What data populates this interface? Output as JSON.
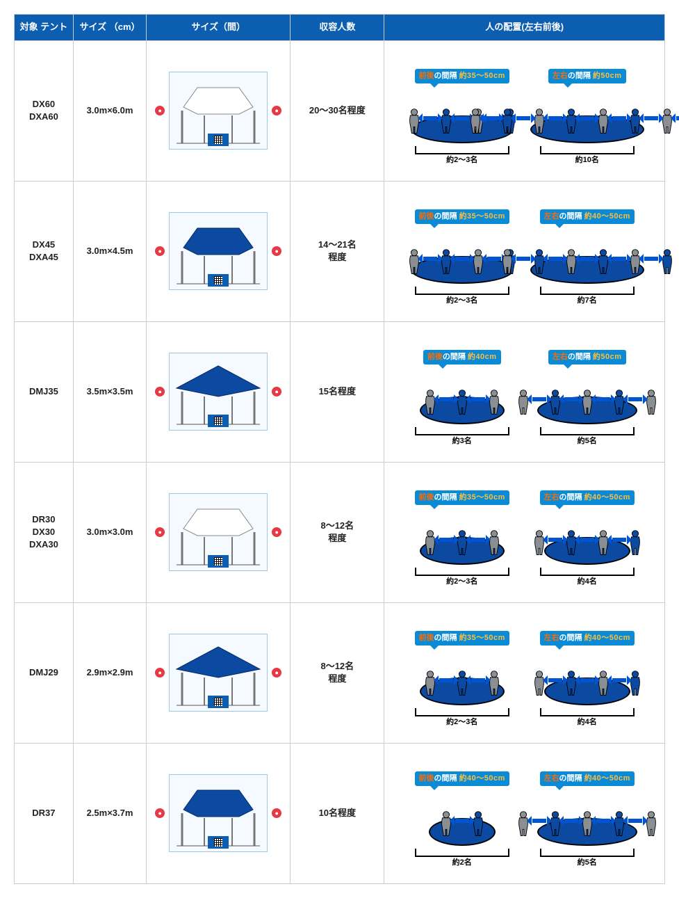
{
  "headers": {
    "model": "対象\nテント",
    "size": "サイズ\n（cm）",
    "ken": "サイズ（間）",
    "capacity": "収容人数",
    "placement": "人の配置(左右前後)"
  },
  "colors": {
    "header_bg": "#0b5eb0",
    "bubble_bg": "#0b8bd6",
    "platform": "#0b4aa0",
    "arrow": "#0055d4",
    "person_grey": "#8a8f94",
    "person_blue": "#0b4aa0",
    "highlight_orange": "#ff6a00",
    "highlight_yellow": "#ffbe3b"
  },
  "rows": [
    {
      "model": "DX60\nDXA60",
      "size": "3.0m×6.0m",
      "tent": {
        "roof_color": "#ffffff",
        "shape": "gable-long"
      },
      "capacity": "20～30名程度",
      "front": {
        "label_hl": "前後",
        "label_rest": "の間隔",
        "value": "約35～50cm",
        "people": 4,
        "bracket": "約2～3名"
      },
      "side": {
        "label_hl": "左右",
        "label_rest": "の間隔",
        "value": "約50cm",
        "people": 8,
        "bracket": "約10名"
      }
    },
    {
      "model": "DX45\nDXA45",
      "size": "3.0m×4.5m",
      "tent": {
        "roof_color": "#0b4aa0",
        "shape": "gable-long"
      },
      "capacity": "14～21名\n程度",
      "front": {
        "label_hl": "前後",
        "label_rest": "の間隔",
        "value": "約35～50cm",
        "people": 4,
        "bracket": "約2～3名"
      },
      "side": {
        "label_hl": "左右",
        "label_rest": "の間隔",
        "value": "約40～50cm",
        "people": 6,
        "bracket": "約7名"
      }
    },
    {
      "model": "DMJ35",
      "size": "3.5m×3.5m",
      "tent": {
        "roof_color": "#0b4aa0",
        "shape": "pyramid"
      },
      "capacity": "15名程度",
      "front": {
        "label_hl": "前後",
        "label_rest": "の間隔",
        "value": "約40cm",
        "people": 3,
        "bracket": "約3名"
      },
      "side": {
        "label_hl": "左右",
        "label_rest": "の間隔",
        "value": "約50cm",
        "people": 5,
        "bracket": "約5名"
      }
    },
    {
      "model": "DR30\nDX30\nDXA30",
      "size": "3.0m×3.0m",
      "tent": {
        "roof_color": "#ffffff",
        "shape": "gable-square"
      },
      "capacity": "8～12名\n程度",
      "front": {
        "label_hl": "前後",
        "label_rest": "の間隔",
        "value": "約35～50cm",
        "people": 3,
        "bracket": "約2～3名"
      },
      "side": {
        "label_hl": "左右",
        "label_rest": "の間隔",
        "value": "約40～50cm",
        "people": 4,
        "bracket": "約4名"
      }
    },
    {
      "model": "DMJ29",
      "size": "2.9m×2.9m",
      "tent": {
        "roof_color": "#0b4aa0",
        "shape": "pyramid"
      },
      "capacity": "8～12名\n程度",
      "front": {
        "label_hl": "前後",
        "label_rest": "の間隔",
        "value": "約35～50cm",
        "people": 3,
        "bracket": "約2～3名"
      },
      "side": {
        "label_hl": "左右",
        "label_rest": "の間隔",
        "value": "約40～50cm",
        "people": 4,
        "bracket": "約4名"
      }
    },
    {
      "model": "DR37",
      "size": "2.5m×3.7m",
      "tent": {
        "roof_color": "#0b4aa0",
        "shape": "gable-long"
      },
      "capacity": "10名程度",
      "front": {
        "label_hl": "前後",
        "label_rest": "の間隔",
        "value": "約40～50cm",
        "people": 2,
        "bracket": "約2名"
      },
      "side": {
        "label_hl": "左右",
        "label_rest": "の間隔",
        "value": "約40～50cm",
        "people": 5,
        "bracket": "約5名"
      }
    }
  ]
}
